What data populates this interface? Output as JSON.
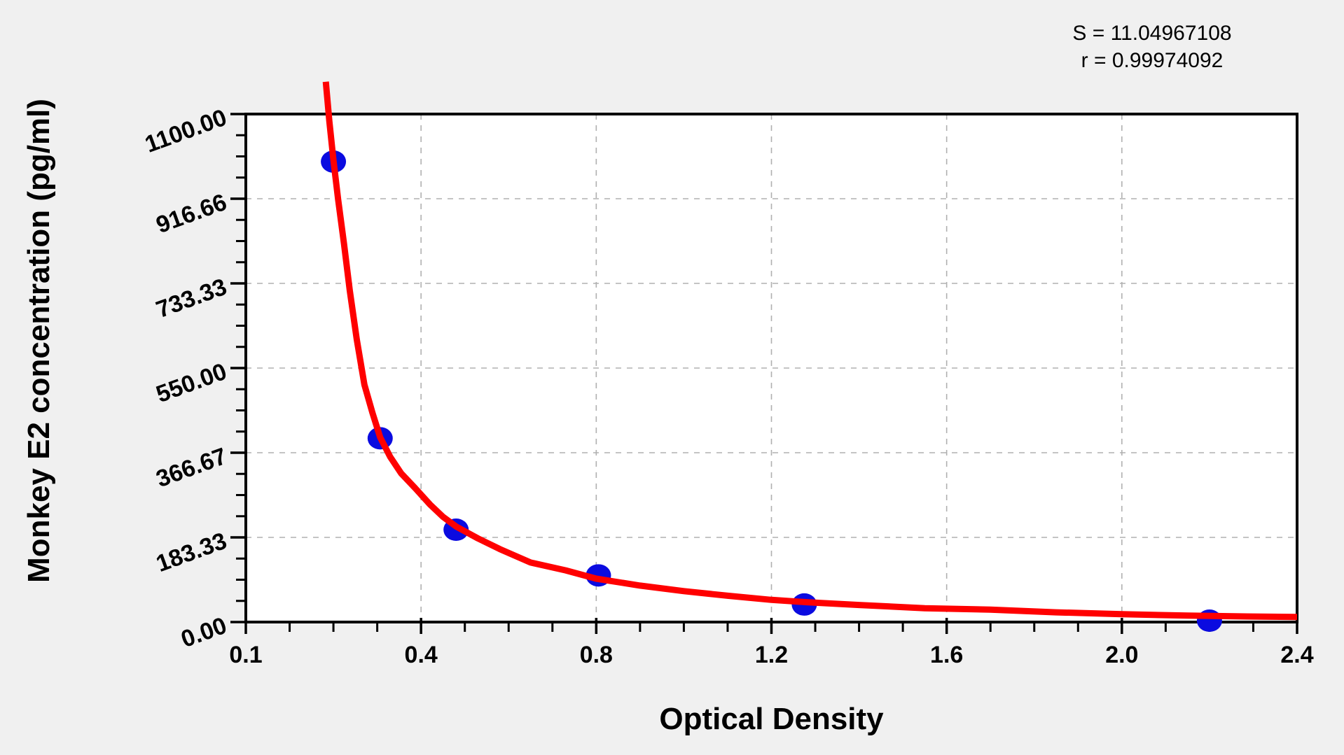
{
  "stats": {
    "s": "S = 11.04967108",
    "r": "r = 0.99974092"
  },
  "chart_data": {
    "type": "scatter",
    "title": "",
    "xlabel": "Optical Density",
    "ylabel": "Monkey E2 concentration (pg/ml)",
    "legend": "none",
    "grid": {
      "shown": true,
      "style": "dashed",
      "color": "#b0b0b0",
      "at": "major ticks (interior only)"
    },
    "x_axis": {
      "tick_labels": [
        "0.1",
        "0.4",
        "0.8",
        "1.2",
        "1.6",
        "2.0",
        "2.4"
      ],
      "tick_values": [
        0.1,
        0.4,
        0.8,
        1.2,
        1.6,
        2.0,
        2.4
      ],
      "minor_divisions_per_major": 4,
      "scale_note": "major ticks evenly spaced in pixels; value scale piecewise-linear between labeled ticks"
    },
    "y_axis": {
      "tick_labels": [
        "0.00",
        "183.33",
        "366.67",
        "550.00",
        "733.33",
        "916.66",
        "1100.00"
      ],
      "tick_values": [
        0,
        183.33,
        366.67,
        550.0,
        733.33,
        916.66,
        1100.0
      ],
      "range": [
        0,
        1100
      ],
      "minor_divisions_per_major": 4
    },
    "fit_stats": {
      "S": "11.04967108",
      "r": "0.99974092"
    },
    "series": [
      {
        "name": "standard-points",
        "type": "scatter",
        "marker": "ellipse",
        "color": "#0b0be0",
        "points": [
          {
            "od": 0.25,
            "conc": 997
          },
          {
            "od": 0.33,
            "conc": 398
          },
          {
            "od": 0.48,
            "conc": 200
          },
          {
            "od": 0.805,
            "conc": 101
          },
          {
            "od": 1.275,
            "conc": 38
          },
          {
            "od": 2.2,
            "conc": 3
          }
        ]
      },
      {
        "name": "fitted-curve",
        "type": "line",
        "color": "#ff0000",
        "samples": [
          [
            0.237,
            1170
          ],
          [
            0.243,
            1085
          ],
          [
            0.25,
            1000
          ],
          [
            0.258,
            915
          ],
          [
            0.268,
            820
          ],
          [
            0.278,
            718
          ],
          [
            0.29,
            612
          ],
          [
            0.303,
            514
          ],
          [
            0.317,
            452
          ],
          [
            0.33,
            400
          ],
          [
            0.347,
            358
          ],
          [
            0.366,
            322
          ],
          [
            0.39,
            290
          ],
          [
            0.42,
            255
          ],
          [
            0.45,
            228
          ],
          [
            0.48,
            207
          ],
          [
            0.53,
            181
          ],
          [
            0.58,
            158
          ],
          [
            0.65,
            129
          ],
          [
            0.73,
            112
          ],
          [
            0.8,
            94
          ],
          [
            0.9,
            79
          ],
          [
            1.0,
            67
          ],
          [
            1.1,
            57
          ],
          [
            1.2,
            48
          ],
          [
            1.28,
            43
          ],
          [
            1.4,
            37
          ],
          [
            1.55,
            30
          ],
          [
            1.7,
            27
          ],
          [
            1.85,
            21
          ],
          [
            2.0,
            17
          ],
          [
            2.15,
            14
          ],
          [
            2.3,
            12
          ],
          [
            2.4,
            11
          ]
        ]
      }
    ],
    "colors": {
      "background": "#f0f0f0",
      "plot_background": "#ffffff",
      "frame": "#000000",
      "curve": "#ff0000",
      "points": "#0b0be0",
      "grid": "#b0b0b0",
      "text": "#000000"
    }
  }
}
